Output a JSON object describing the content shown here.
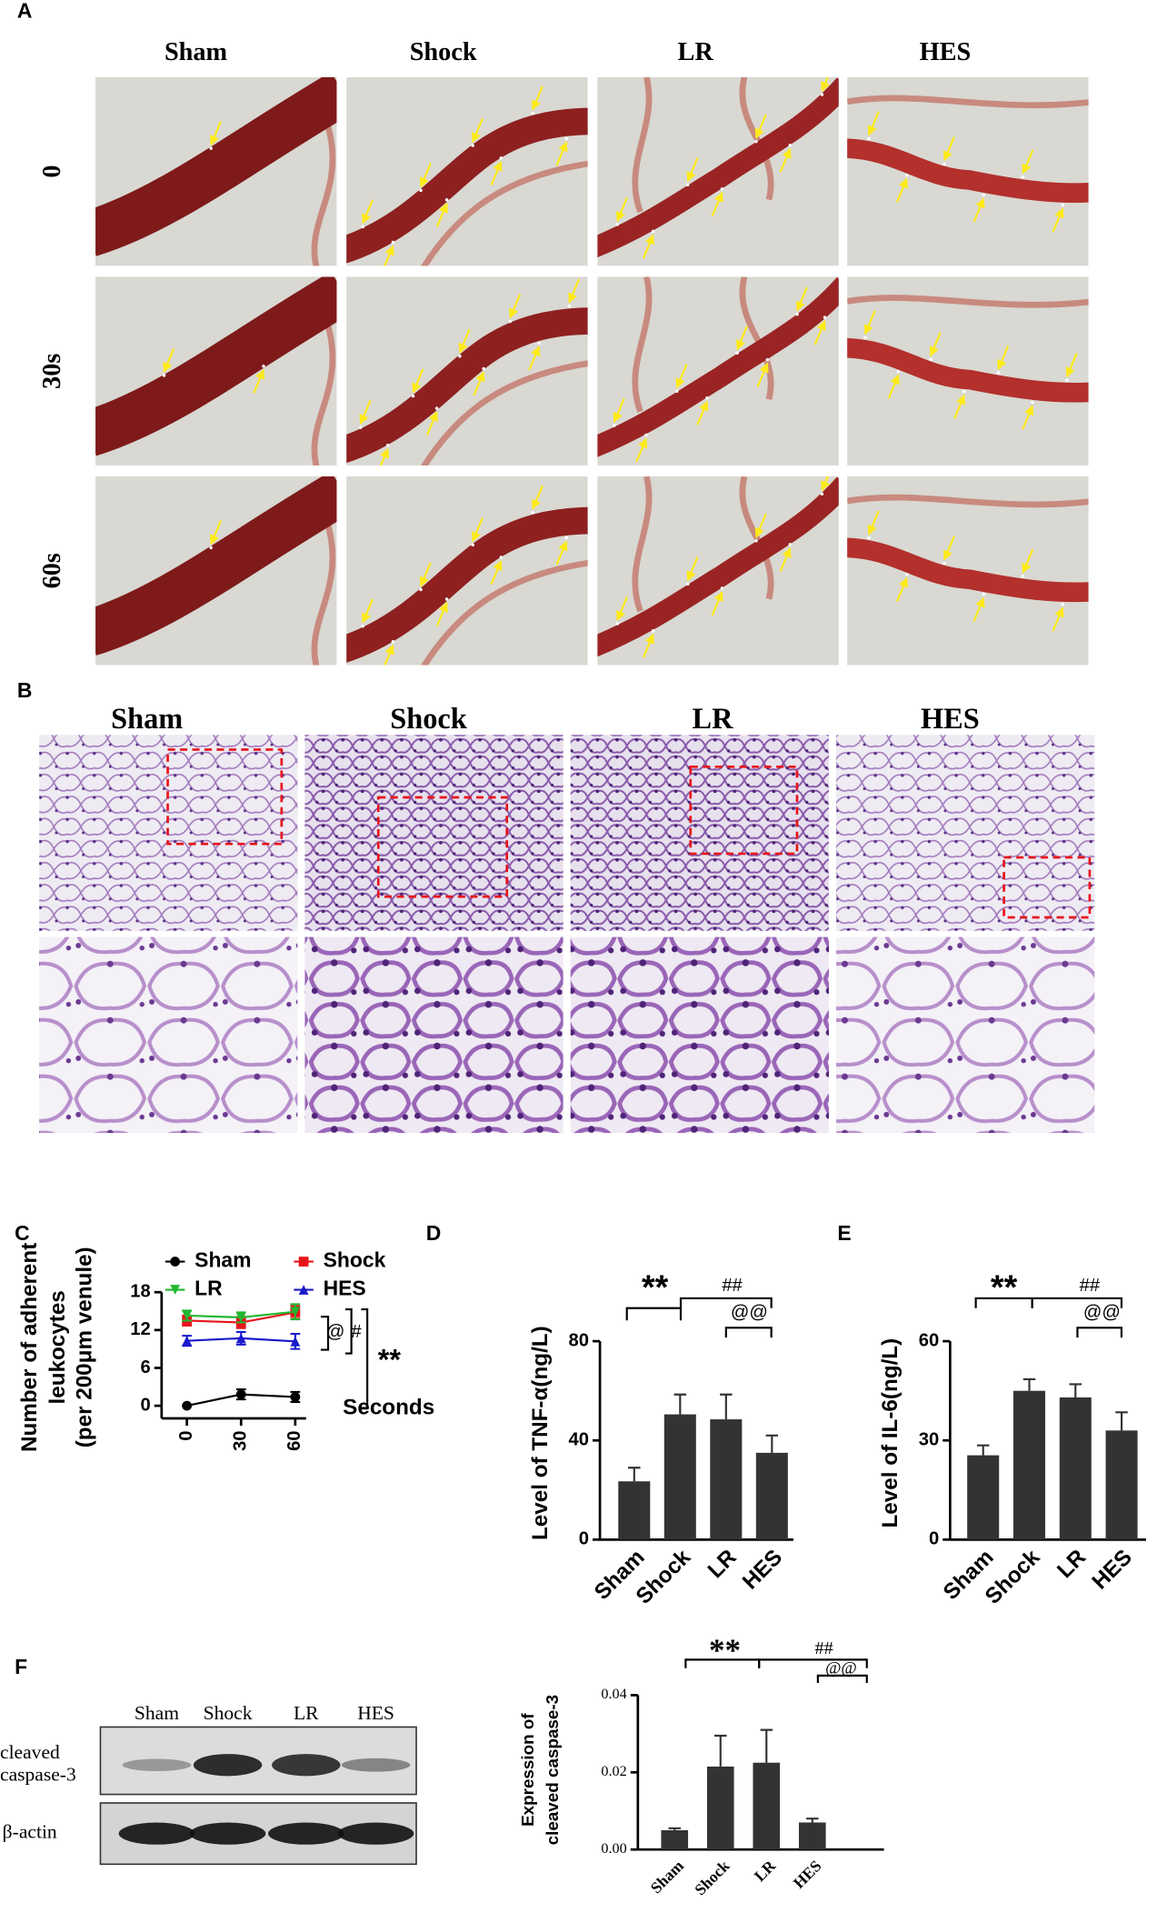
{
  "panel_labels": [
    "A",
    "B",
    "C",
    "D",
    "E",
    "F"
  ],
  "panel_a": {
    "columns": [
      "Sham",
      "Shock",
      "LR",
      "HES"
    ],
    "rows": [
      "0",
      "30s",
      "60s"
    ]
  },
  "panel_b": {
    "columns": [
      "Sham",
      "Shock",
      "LR",
      "HES"
    ]
  },
  "panel_f_blot": {
    "lanes": [
      "Sham",
      "Shock",
      "LR",
      "HES"
    ],
    "cleaved_label": [
      "cleaved",
      "caspase-3"
    ],
    "actin_label": "β-actin"
  },
  "chart_data": [
    {
      "type": "line",
      "x": [
        0,
        30,
        60
      ],
      "xlim": [
        -14,
        66
      ],
      "xticks": [
        0,
        30,
        60
      ],
      "xlabel": "Seconds",
      "ylim": [
        -2,
        18
      ],
      "yticks": [
        0,
        6,
        12,
        18
      ],
      "ylabel": [
        "Number of adherent",
        "leukocytes",
        "(per 200μm venule)"
      ],
      "series": [
        {
          "name": "Sham",
          "color": "#000000",
          "marker": "circle",
          "values": [
            0,
            1.8,
            1.4
          ],
          "errors": [
            0,
            0.8,
            0.8
          ]
        },
        {
          "name": "Shock",
          "color": "#e8141b",
          "marker": "square",
          "values": [
            13.5,
            13.2,
            14.8
          ],
          "errors": [
            0.8,
            0.9,
            1.0
          ]
        },
        {
          "name": "LR",
          "color": "#22b630",
          "marker": "triangle-down",
          "values": [
            14.3,
            14.0,
            14.9
          ],
          "errors": [
            0.8,
            0.8,
            1.2
          ]
        },
        {
          "name": "HES",
          "color": "#1a1acc",
          "marker": "triangle-up",
          "values": [
            10.3,
            10.7,
            10.2
          ],
          "errors": [
            0.8,
            1.0,
            1.2
          ]
        }
      ],
      "annotations": [
        "@",
        "#",
        "**"
      ]
    },
    {
      "type": "bar",
      "categories": [
        "Sham",
        "Shock",
        "LR",
        "HES"
      ],
      "values": [
        23.5,
        50.5,
        48.5,
        35
      ],
      "errors": [
        5.5,
        8,
        10,
        7
      ],
      "color": "#333333",
      "ylim": [
        0,
        80
      ],
      "yticks": [
        0,
        40,
        80
      ],
      "ylabel": "Level of TNF-α(ng/L)",
      "annotations": [
        "**",
        "##",
        "@@"
      ]
    },
    {
      "type": "bar",
      "categories": [
        "Sham",
        "Shock",
        "LR",
        "HES"
      ],
      "values": [
        25.5,
        45,
        43,
        33
      ],
      "errors": [
        3,
        3.5,
        4,
        5.5
      ],
      "color": "#333333",
      "ylim": [
        0,
        60
      ],
      "yticks": [
        0,
        30,
        60
      ],
      "ylabel": "Level of IL-6(ng/L)",
      "annotations": [
        "**",
        "##",
        "@@"
      ]
    },
    {
      "type": "bar",
      "categories": [
        "Sham",
        "Shock",
        "LR",
        "HES"
      ],
      "values": [
        0.005,
        0.0215,
        0.0225,
        0.007
      ],
      "errors": [
        0.0005,
        0.008,
        0.0085,
        0.001
      ],
      "color": "#333333",
      "ylim": [
        0,
        0.04
      ],
      "yticks": [
        {
          "value": 0,
          "label": "0.00"
        },
        {
          "value": 0.02,
          "label": "0.02"
        },
        {
          "value": 0.04,
          "label": "0.04"
        }
      ],
      "ylabel": [
        "Expression of",
        "cleaved caspase-3"
      ],
      "annotations": [
        "**",
        "##",
        "@@"
      ]
    }
  ]
}
